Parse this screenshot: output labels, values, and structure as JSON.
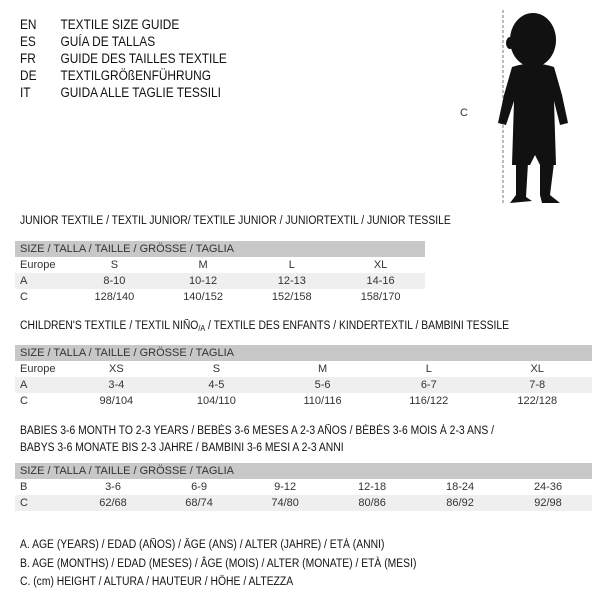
{
  "languages": [
    {
      "code": "EN",
      "text": "TEXTILE SIZE GUIDE"
    },
    {
      "code": "ES",
      "text": "GUÍA DE TALLAS"
    },
    {
      "code": "FR",
      "text": "GUIDE DES TAILLES TEXTILE"
    },
    {
      "code": "DE",
      "text": "TEXTILGRÖßENFÜHRUNG"
    },
    {
      "code": "IT",
      "text": "GUIDA ALLE TAGLIE TESSILI"
    }
  ],
  "figure": {
    "measure_label": "C"
  },
  "junior": {
    "title": "JUNIOR TEXTILE / TEXTIL JUNIOR/ TEXTILE JUNIOR / JUNIORTEXTIL / JUNIOR TESSILE",
    "header": "SIZE / TALLA / TAILLE / GRÖSSE / TAGLIA",
    "rows": [
      {
        "label": "Europe",
        "values": [
          "S",
          "M",
          "L",
          "XL"
        ]
      },
      {
        "label": "A",
        "values": [
          "8-10",
          "10-12",
          "12-13",
          "14-16"
        ]
      },
      {
        "label": "C",
        "values": [
          "128/140",
          "140/152",
          "152/158",
          "158/170"
        ]
      }
    ]
  },
  "children": {
    "title_pre": "CHILDREN'S TEXTILE / TEXTIL NIÑO",
    "title_sub": "/A",
    "title_post": " / TEXTILE DES ENFANTS / KINDERTEXTIL / BAMBINI TESSILE",
    "header": "SIZE / TALLA / TAILLE / GRÖSSE / TAGLIA",
    "rows": [
      {
        "label": "Europe",
        "values": [
          "XS",
          "S",
          "M",
          "L",
          "XL"
        ]
      },
      {
        "label": "A",
        "values": [
          "3-4",
          "4-5",
          "5-6",
          "6-7",
          "7-8"
        ]
      },
      {
        "label": "C",
        "values": [
          "98/104",
          "104/110",
          "110/116",
          "116/122",
          "122/128"
        ]
      }
    ]
  },
  "babies": {
    "title_line1": "BABIES 3-6 MONTH TO 2-3 YEARS / BEBÉS 3-6 MESES A 2-3 AÑOS / BÉBÉS 3-6 MOIS À 2-3 ANS /",
    "title_line2": "BABYS 3-6 MONATE BIS 2-3 JAHRE / BAMBINI 3-6 MESI A 2-3 ANNI",
    "header": "SIZE / TALLA / TAILLE / GRÖSSE / TAGLIA",
    "rows": [
      {
        "label": "B",
        "values": [
          "3-6",
          "6-9",
          "9-12",
          "12-18",
          "18-24",
          "24-36"
        ]
      },
      {
        "label": "C",
        "values": [
          "62/68",
          "68/74",
          "74/80",
          "80/86",
          "86/92",
          "92/98"
        ]
      }
    ]
  },
  "legend": [
    "A. AGE (YEARS) / EDAD (AÑOS) / ÂGE (ANS) / ALTER (JAHRE) / ETÀ (ANNI)",
    "B. AGE (MONTHS) / EDAD (MESES) / ÂGE (MOIS) / ALTER (MONATE) / ETÀ (MESI)",
    "C. (cm) HEIGHT / ALTURA / HAUTEUR / HÖHE / ALTEZZA"
  ]
}
